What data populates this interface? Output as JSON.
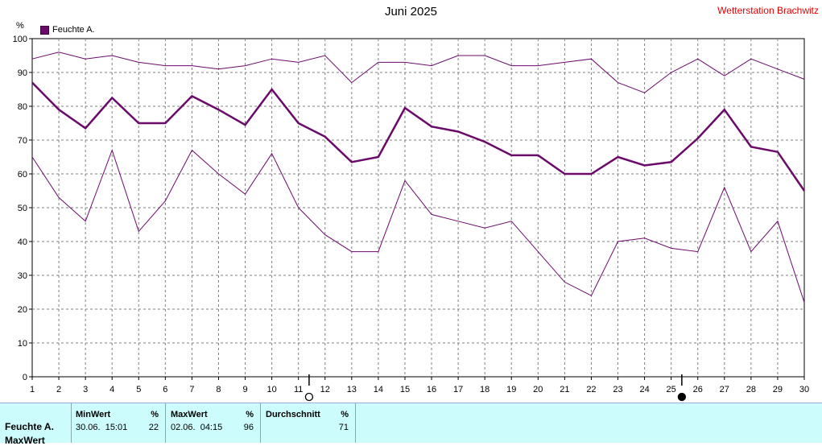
{
  "header": {
    "title": "Juni 2025",
    "station": "Wetterstation Brachwitz",
    "unit": "%",
    "legend_label": "Feuchte A."
  },
  "colors": {
    "series": "#6b0a6b",
    "grid": "#808080",
    "station": "#e00000",
    "panel": "#ccfcfc"
  },
  "chart_data": {
    "type": "line",
    "x": [
      1,
      2,
      3,
      4,
      5,
      6,
      7,
      8,
      9,
      10,
      11,
      12,
      13,
      14,
      15,
      16,
      17,
      18,
      19,
      20,
      21,
      22,
      23,
      24,
      25,
      26,
      27,
      28,
      29,
      30
    ],
    "ylim": [
      0,
      100
    ],
    "yticks": [
      0,
      10,
      20,
      30,
      40,
      50,
      60,
      70,
      80,
      90,
      100
    ],
    "series": [
      {
        "role": "max",
        "values": [
          94,
          96,
          94,
          95,
          93,
          92,
          92,
          91,
          92,
          94,
          93,
          95,
          87,
          93,
          93,
          92,
          95,
          95,
          92,
          92,
          93,
          94,
          87,
          84,
          90,
          94,
          89,
          94,
          91,
          88
        ]
      },
      {
        "role": "avg",
        "name": "Feuchte A.",
        "values": [
          87,
          79,
          73.5,
          82.5,
          75,
          75,
          83,
          79,
          74.5,
          85,
          75,
          71,
          63.5,
          65,
          79.5,
          74,
          72.5,
          69.5,
          65.5,
          65.5,
          60,
          60,
          65,
          62.5,
          63.5,
          70.5,
          79,
          68,
          66.5,
          55
        ]
      },
      {
        "role": "min",
        "values": [
          65,
          53,
          46,
          67,
          43,
          52,
          67,
          60,
          54,
          66,
          50,
          42,
          37,
          37,
          58,
          48,
          46,
          44,
          46,
          37,
          28,
          24,
          40,
          41,
          38,
          37,
          56,
          37,
          46,
          22
        ]
      }
    ],
    "moon_phases": [
      {
        "day": 11.4,
        "phase": "full-moon"
      },
      {
        "day": 25.4,
        "phase": "new-moon"
      }
    ]
  },
  "stats": {
    "row_labels": [
      "Feuchte A.",
      "MaxWert"
    ],
    "min": {
      "header": "MinWert",
      "unit": "%",
      "when": "30.06.  15:01",
      "value": "22"
    },
    "max": {
      "header": "MaxWert",
      "unit": "%",
      "when": "02.06.  04:15",
      "value": "96"
    },
    "avg": {
      "header": "Durchschnitt",
      "unit": "%",
      "value": "71"
    }
  }
}
